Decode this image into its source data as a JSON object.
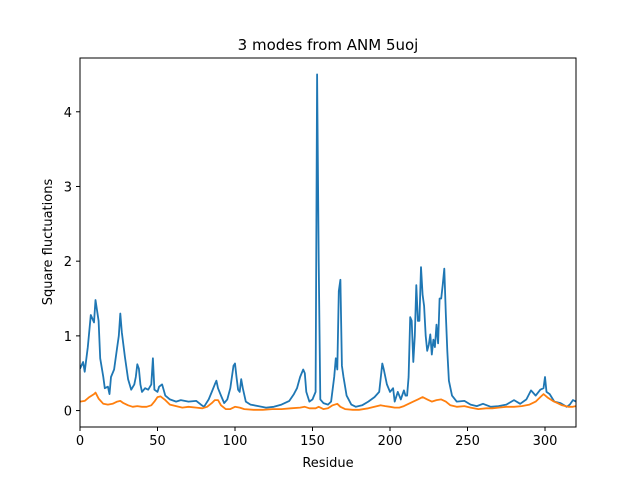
{
  "chart_data": {
    "type": "line",
    "title": "3 modes from ANM 5uoj",
    "xlabel": "Residue",
    "ylabel": "Square fluctuations",
    "xlim": [
      0,
      320
    ],
    "ylim": [
      -0.22,
      4.72
    ],
    "xticks": [
      0,
      50,
      100,
      150,
      200,
      250,
      300
    ],
    "yticks": [
      0,
      1,
      2,
      3,
      4
    ],
    "grid": false,
    "legend": "none",
    "series": [
      {
        "color": "#1f77b4",
        "points": [
          [
            0,
            0.56
          ],
          [
            2,
            0.65
          ],
          [
            3,
            0.52
          ],
          [
            5,
            0.85
          ],
          [
            7,
            1.28
          ],
          [
            9,
            1.18
          ],
          [
            10,
            1.48
          ],
          [
            12,
            1.2
          ],
          [
            13,
            0.7
          ],
          [
            15,
            0.45
          ],
          [
            16,
            0.3
          ],
          [
            18,
            0.32
          ],
          [
            19,
            0.22
          ],
          [
            20,
            0.45
          ],
          [
            22,
            0.55
          ],
          [
            24,
            0.85
          ],
          [
            25,
            1.0
          ],
          [
            26,
            1.3
          ],
          [
            27,
            1.05
          ],
          [
            29,
            0.72
          ],
          [
            31,
            0.42
          ],
          [
            33,
            0.28
          ],
          [
            35,
            0.35
          ],
          [
            36,
            0.45
          ],
          [
            37,
            0.62
          ],
          [
            38,
            0.56
          ],
          [
            39,
            0.35
          ],
          [
            40,
            0.25
          ],
          [
            42,
            0.3
          ],
          [
            44,
            0.28
          ],
          [
            46,
            0.35
          ],
          [
            47,
            0.7
          ],
          [
            48,
            0.28
          ],
          [
            50,
            0.25
          ],
          [
            51,
            0.32
          ],
          [
            53,
            0.35
          ],
          [
            55,
            0.2
          ],
          [
            58,
            0.15
          ],
          [
            62,
            0.12
          ],
          [
            65,
            0.14
          ],
          [
            70,
            0.12
          ],
          [
            75,
            0.13
          ],
          [
            78,
            0.08
          ],
          [
            80,
            0.05
          ],
          [
            83,
            0.15
          ],
          [
            85,
            0.25
          ],
          [
            87,
            0.35
          ],
          [
            88,
            0.4
          ],
          [
            89,
            0.3
          ],
          [
            91,
            0.2
          ],
          [
            93,
            0.1
          ],
          [
            95,
            0.15
          ],
          [
            97,
            0.3
          ],
          [
            99,
            0.6
          ],
          [
            100,
            0.63
          ],
          [
            101,
            0.45
          ],
          [
            102,
            0.28
          ],
          [
            103,
            0.25
          ],
          [
            104,
            0.42
          ],
          [
            105,
            0.3
          ],
          [
            107,
            0.12
          ],
          [
            110,
            0.08
          ],
          [
            115,
            0.06
          ],
          [
            120,
            0.04
          ],
          [
            125,
            0.05
          ],
          [
            130,
            0.08
          ],
          [
            135,
            0.13
          ],
          [
            138,
            0.22
          ],
          [
            140,
            0.3
          ],
          [
            142,
            0.45
          ],
          [
            144,
            0.55
          ],
          [
            145,
            0.5
          ],
          [
            146,
            0.25
          ],
          [
            148,
            0.12
          ],
          [
            150,
            0.15
          ],
          [
            152,
            0.25
          ],
          [
            153,
            4.5
          ],
          [
            154,
            2.0
          ],
          [
            155,
            0.15
          ],
          [
            157,
            0.1
          ],
          [
            160,
            0.08
          ],
          [
            162,
            0.12
          ],
          [
            164,
            0.45
          ],
          [
            165,
            0.7
          ],
          [
            166,
            0.55
          ],
          [
            167,
            1.6
          ],
          [
            168,
            1.75
          ],
          [
            169,
            0.6
          ],
          [
            170,
            0.45
          ],
          [
            172,
            0.2
          ],
          [
            175,
            0.08
          ],
          [
            178,
            0.05
          ],
          [
            182,
            0.07
          ],
          [
            186,
            0.12
          ],
          [
            190,
            0.18
          ],
          [
            193,
            0.25
          ],
          [
            195,
            0.63
          ],
          [
            196,
            0.55
          ],
          [
            198,
            0.35
          ],
          [
            200,
            0.25
          ],
          [
            202,
            0.3
          ],
          [
            203,
            0.12
          ],
          [
            205,
            0.25
          ],
          [
            207,
            0.15
          ],
          [
            209,
            0.27
          ],
          [
            210,
            0.2
          ],
          [
            211,
            0.2
          ],
          [
            212,
            0.45
          ],
          [
            213,
            1.25
          ],
          [
            214,
            1.2
          ],
          [
            215,
            0.65
          ],
          [
            216,
            1.0
          ],
          [
            217,
            1.68
          ],
          [
            218,
            1.2
          ],
          [
            219,
            1.2
          ],
          [
            220,
            1.92
          ],
          [
            221,
            1.55
          ],
          [
            222,
            1.4
          ],
          [
            223,
            1.0
          ],
          [
            224,
            0.8
          ],
          [
            225,
            0.88
          ],
          [
            226,
            1.02
          ],
          [
            227,
            0.75
          ],
          [
            228,
            0.95
          ],
          [
            229,
            0.85
          ],
          [
            230,
            1.15
          ],
          [
            231,
            0.9
          ],
          [
            232,
            1.5
          ],
          [
            233,
            1.5
          ],
          [
            234,
            1.68
          ],
          [
            235,
            1.9
          ],
          [
            236,
            1.3
          ],
          [
            237,
            0.8
          ],
          [
            238,
            0.4
          ],
          [
            240,
            0.2
          ],
          [
            243,
            0.12
          ],
          [
            248,
            0.13
          ],
          [
            252,
            0.08
          ],
          [
            256,
            0.06
          ],
          [
            260,
            0.09
          ],
          [
            265,
            0.05
          ],
          [
            270,
            0.06
          ],
          [
            275,
            0.08
          ],
          [
            280,
            0.14
          ],
          [
            284,
            0.09
          ],
          [
            288,
            0.15
          ],
          [
            291,
            0.27
          ],
          [
            294,
            0.2
          ],
          [
            297,
            0.28
          ],
          [
            299,
            0.3
          ],
          [
            300,
            0.45
          ],
          [
            301,
            0.25
          ],
          [
            303,
            0.22
          ],
          [
            306,
            0.12
          ],
          [
            310,
            0.1
          ],
          [
            314,
            0.05
          ],
          [
            316,
            0.08
          ],
          [
            318,
            0.14
          ],
          [
            320,
            0.12
          ]
        ]
      },
      {
        "color": "#ff7f0e",
        "points": [
          [
            0,
            0.12
          ],
          [
            3,
            0.13
          ],
          [
            6,
            0.18
          ],
          [
            9,
            0.22
          ],
          [
            10,
            0.24
          ],
          [
            12,
            0.16
          ],
          [
            15,
            0.09
          ],
          [
            18,
            0.08
          ],
          [
            21,
            0.09
          ],
          [
            24,
            0.12
          ],
          [
            26,
            0.13
          ],
          [
            28,
            0.1
          ],
          [
            31,
            0.07
          ],
          [
            34,
            0.05
          ],
          [
            37,
            0.06
          ],
          [
            40,
            0.05
          ],
          [
            43,
            0.05
          ],
          [
            46,
            0.07
          ],
          [
            48,
            0.12
          ],
          [
            50,
            0.18
          ],
          [
            52,
            0.19
          ],
          [
            55,
            0.14
          ],
          [
            58,
            0.08
          ],
          [
            62,
            0.06
          ],
          [
            66,
            0.04
          ],
          [
            70,
            0.05
          ],
          [
            75,
            0.04
          ],
          [
            79,
            0.03
          ],
          [
            82,
            0.05
          ],
          [
            85,
            0.1
          ],
          [
            87,
            0.14
          ],
          [
            89,
            0.14
          ],
          [
            91,
            0.07
          ],
          [
            94,
            0.02
          ],
          [
            97,
            0.02
          ],
          [
            100,
            0.05
          ],
          [
            103,
            0.04
          ],
          [
            106,
            0.02
          ],
          [
            112,
            0.01
          ],
          [
            118,
            0.01
          ],
          [
            124,
            0.02
          ],
          [
            130,
            0.02
          ],
          [
            136,
            0.03
          ],
          [
            142,
            0.04
          ],
          [
            145,
            0.05
          ],
          [
            148,
            0.03
          ],
          [
            152,
            0.03
          ],
          [
            154,
            0.05
          ],
          [
            157,
            0.02
          ],
          [
            160,
            0.03
          ],
          [
            163,
            0.07
          ],
          [
            166,
            0.09
          ],
          [
            168,
            0.05
          ],
          [
            171,
            0.02
          ],
          [
            176,
            0.01
          ],
          [
            180,
            0.01
          ],
          [
            186,
            0.03
          ],
          [
            190,
            0.05
          ],
          [
            194,
            0.07
          ],
          [
            197,
            0.06
          ],
          [
            200,
            0.05
          ],
          [
            203,
            0.04
          ],
          [
            206,
            0.04
          ],
          [
            209,
            0.06
          ],
          [
            212,
            0.09
          ],
          [
            215,
            0.12
          ],
          [
            218,
            0.15
          ],
          [
            221,
            0.18
          ],
          [
            224,
            0.15
          ],
          [
            227,
            0.12
          ],
          [
            230,
            0.14
          ],
          [
            233,
            0.15
          ],
          [
            236,
            0.12
          ],
          [
            239,
            0.07
          ],
          [
            243,
            0.05
          ],
          [
            248,
            0.06
          ],
          [
            252,
            0.04
          ],
          [
            257,
            0.02
          ],
          [
            262,
            0.03
          ],
          [
            266,
            0.03
          ],
          [
            270,
            0.04
          ],
          [
            275,
            0.05
          ],
          [
            280,
            0.05
          ],
          [
            285,
            0.06
          ],
          [
            290,
            0.08
          ],
          [
            294,
            0.12
          ],
          [
            297,
            0.18
          ],
          [
            299,
            0.22
          ],
          [
            302,
            0.17
          ],
          [
            305,
            0.13
          ],
          [
            308,
            0.1
          ],
          [
            311,
            0.07
          ],
          [
            315,
            0.05
          ],
          [
            318,
            0.05
          ],
          [
            320,
            0.06
          ]
        ]
      }
    ]
  }
}
